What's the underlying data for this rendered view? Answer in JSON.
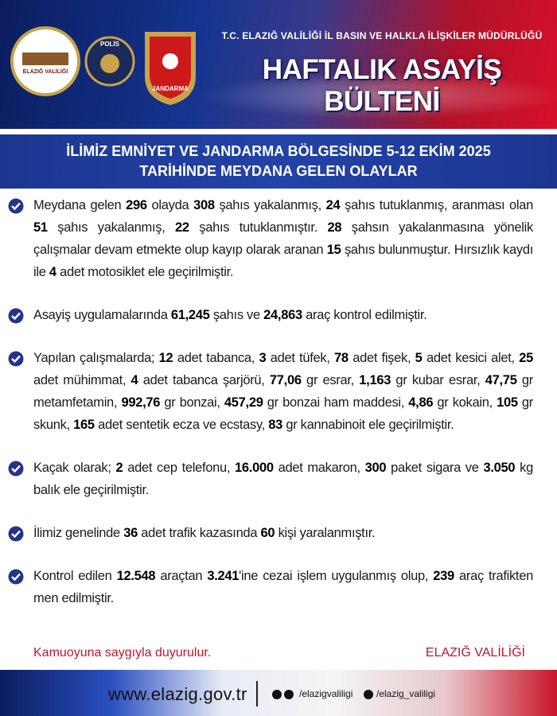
{
  "header": {
    "logos": [
      "ELAZIĞ VALİLİĞİ",
      "POLİS",
      "JANDARMA"
    ],
    "organization": "T.C. ELAZIĞ VALİLİĞİ İL BASIN VE HALKLA İLİŞKİLER MÜDÜRLÜĞÜ",
    "title": "HAFTALIK ASAYİŞ BÜLTENİ"
  },
  "subtitle": [
    "İLİMİZ EMNİYET VE JANDARMA BÖLGESİNDE 5-12 EKİM 2025",
    "TARİHİNDE MEYDANA GELEN OLAYLAR"
  ],
  "body": {
    "items": [
      {
        "segments": [
          "Meydana gelen ",
          "296",
          " olayda ",
          "308",
          " şahıs yakalanmış, ",
          "24",
          " şahıs tutuklanmış, aranması olan ",
          "51",
          " şahıs yakalanmış, ",
          "22",
          " şahıs tutuklanmıştır. ",
          "28",
          " şahsın yakalanmasına yönelik çalışmalar devam etmekte olup kayıp olarak aranan ",
          "15",
          " şahıs bulunmuştur. Hırsızlık kaydı ile ",
          "4",
          " adet motosiklet ele geçirilmiştir."
        ]
      },
      {
        "segments": [
          "Asayiş uygulamalarında ",
          "61,245",
          " şahıs ve ",
          "24,863",
          " araç kontrol edilmiştir."
        ]
      },
      {
        "segments": [
          "Yapılan çalışmalarda; ",
          "12",
          " adet tabanca, ",
          "3",
          " adet tüfek, ",
          "78",
          " adet fişek, ",
          "5",
          " adet kesici alet, ",
          "25",
          " adet mühimmat, ",
          "4",
          " adet tabanca şarjörü, ",
          "77,06",
          " gr esrar, ",
          "1,163",
          " gr kubar esrar, ",
          "47,75",
          " gr metamfetamin, ",
          "992,76",
          " gr bonzai, ",
          "457,29",
          " gr bonzai ham maddesi, ",
          "4,86",
          " gr kokain, ",
          "105",
          " gr skunk, ",
          "165",
          " adet sentetik ecza ve ecstasy, ",
          "83",
          " gr kannabinoit ele geçirilmiştir."
        ]
      },
      {
        "segments": [
          "Kaçak olarak; ",
          "2",
          " adet cep telefonu, ",
          "16.000",
          " adet makaron, ",
          "300",
          " paket sigara ve ",
          "3.050",
          " kg balık ele geçirilmiştir."
        ]
      },
      {
        "segments": [
          "İlimiz genelinde ",
          "36",
          " adet trafik kazasında ",
          "60",
          " kişi yaralanmıştır."
        ]
      },
      {
        "segments": [
          "Kontrol edilen ",
          "12.548",
          " araçtan ",
          "3.241",
          "'ine cezai işlem uygulanmış olup, ",
          "239",
          " araç trafikten men edilmiştir."
        ]
      }
    ],
    "closing": "Kamuoyuna saygıyla duyurulur.",
    "signature": "ELAZIĞ VALİLİĞİ"
  },
  "footer": {
    "url": "www.elazig.gov.tr",
    "handles": [
      "/elazigvaliligi",
      "/elazig_valiligi"
    ]
  }
}
